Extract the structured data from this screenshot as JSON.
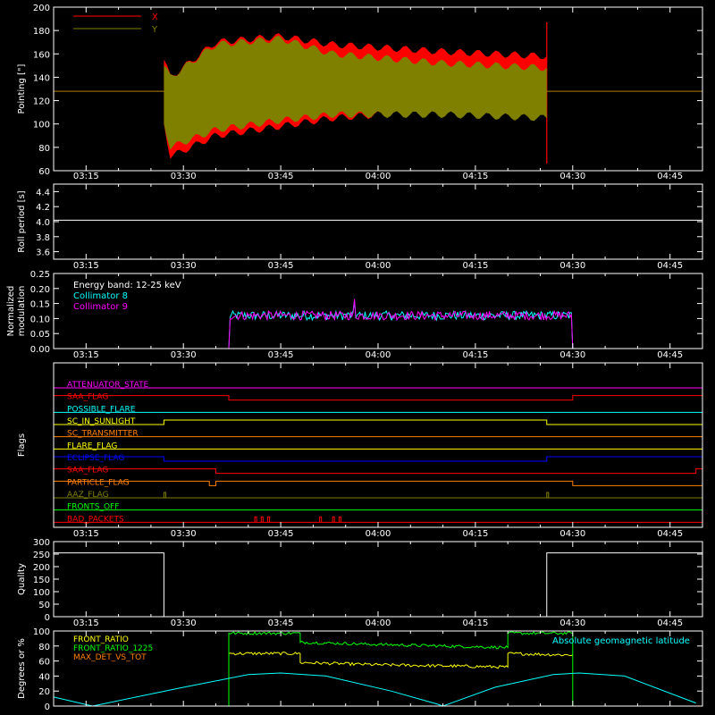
{
  "time_ticks": [
    "03:15",
    "03:30",
    "03:45",
    "04:00",
    "04:15",
    "04:30",
    "04:45"
  ],
  "colors": {
    "background": "#000000",
    "axes": "#ffffff",
    "red": "#ff0000",
    "olive": "#808000",
    "cyan": "#00ffff",
    "magenta": "#ff00ff",
    "orange": "#ff8000",
    "yellow": "#ffff00",
    "green": "#00ff00",
    "blue": "#0000ff",
    "white": "#ffffff"
  },
  "chart_data": [
    {
      "type": "line",
      "panel": "pointing",
      "ylabel": "Pointing [\"]",
      "ylim": [
        60,
        200
      ],
      "yticks": [
        "60",
        "80",
        "100",
        "120",
        "140",
        "160",
        "180",
        "200"
      ],
      "legend_position": "top-left",
      "series": [
        {
          "name": "X",
          "color": "#ff0000",
          "band_start": "03:27",
          "band_end": "04:26",
          "envelope_points": [
            {
              "t": "03:27",
              "upper": 155,
              "lower": 100
            },
            {
              "t": "03:28",
              "upper": 140,
              "lower": 72
            },
            {
              "t": "03:35",
              "upper": 170,
              "lower": 90
            },
            {
              "t": "03:45",
              "upper": 175,
              "lower": 98
            },
            {
              "t": "03:53",
              "upper": 168,
              "lower": 105
            },
            {
              "t": "04:10",
              "upper": 162,
              "lower": 112
            },
            {
              "t": "04:26",
              "upper": 158,
              "lower": 115
            }
          ],
          "baseline": 128,
          "spike": {
            "t": "04:26",
            "high": 187,
            "low": 66
          }
        },
        {
          "name": "Y",
          "color": "#808000",
          "band_start": "03:27",
          "band_end": "04:26",
          "envelope_points": [
            {
              "t": "03:27",
              "upper": 150,
              "lower": 100
            },
            {
              "t": "03:28",
              "upper": 140,
              "lower": 80
            },
            {
              "t": "03:35",
              "upper": 168,
              "lower": 95
            },
            {
              "t": "03:45",
              "upper": 173,
              "lower": 103
            },
            {
              "t": "03:53",
              "upper": 160,
              "lower": 108
            },
            {
              "t": "04:10",
              "upper": 152,
              "lower": 108
            },
            {
              "t": "04:26",
              "upper": 148,
              "lower": 105
            }
          ],
          "baseline": 128
        }
      ]
    },
    {
      "type": "line",
      "panel": "roll",
      "ylabel": "Roll period [s]",
      "ylim": [
        3.5,
        4.5
      ],
      "yticks": [
        "3.6",
        "3.8",
        "4.0",
        "4.2",
        "4.4"
      ],
      "series": [
        {
          "color": "#ffffff",
          "constant": 4.02,
          "from": "03:10",
          "to": "04:50"
        }
      ]
    },
    {
      "type": "line",
      "panel": "modulation",
      "ylabel_lines": [
        "Normalized",
        "modulation"
      ],
      "ylim": [
        0,
        0.25
      ],
      "yticks": [
        "0.00",
        "0.05",
        "0.10",
        "0.15",
        "0.20",
        "0.25"
      ],
      "annotation": "Energy band: 12-25 keV",
      "legend_position": "top-left",
      "active_window": [
        "03:37",
        "04:30"
      ],
      "series": [
        {
          "name": "Collimator 8",
          "color": "#00ffff",
          "mean": 0.11,
          "noise": 0.015
        },
        {
          "name": "Collimator 9",
          "color": "#ff00ff",
          "mean": 0.11,
          "noise": 0.015
        }
      ]
    },
    {
      "type": "line",
      "panel": "flags",
      "ylabel": "Flags",
      "flags": [
        {
          "name": "ATTENUATOR_STATE",
          "color": "#ff00ff",
          "segments": [
            [
              "03:10",
              "04:50",
              0
            ]
          ]
        },
        {
          "name": "SAA_FLAG",
          "color": "#ff0000",
          "segments": [
            [
              "03:10",
              "03:37",
              1
            ],
            [
              "03:37",
              "04:30",
              0
            ],
            [
              "04:30",
              "04:50",
              1
            ]
          ]
        },
        {
          "name": "POSSIBLE_FLARE",
          "color": "#00ffff",
          "segments": [
            [
              "03:10",
              "04:50",
              0
            ]
          ]
        },
        {
          "name": "SC_IN_SUNLIGHT",
          "color": "#ffff00",
          "segments": [
            [
              "03:10",
              "03:27",
              0
            ],
            [
              "03:27",
              "04:26",
              1
            ],
            [
              "04:26",
              "04:50",
              0
            ]
          ]
        },
        {
          "name": "SC_TRANSMITTER",
          "color": "#ff8000",
          "segments": [
            [
              "03:10",
              "04:50",
              0
            ]
          ]
        },
        {
          "name": "FLARE_FLAG",
          "color": "#ffff00",
          "segments": [
            [
              "03:10",
              "04:50",
              0
            ]
          ]
        },
        {
          "name": "ECLIPSE_FLAG",
          "color": "#0000ff",
          "segments": [
            [
              "03:10",
              "03:27",
              1
            ],
            [
              "03:27",
              "04:26",
              0
            ],
            [
              "04:26",
              "04:50",
              1
            ]
          ]
        },
        {
          "name": "SAA_FLAG",
          "color": "#ff0000",
          "segments": [
            [
              "03:10",
              "03:35",
              1
            ],
            [
              "03:35",
              "04:49",
              0
            ],
            [
              "04:49",
              "04:50",
              1
            ]
          ]
        },
        {
          "name": "PARTICLE_FLAG",
          "color": "#ff8000",
          "segments": [
            [
              "03:10",
              "03:34",
              1
            ],
            [
              "03:34",
              "03:35",
              0
            ],
            [
              "03:35",
              "03:36",
              1
            ],
            [
              "03:36",
              "04:30",
              1
            ],
            [
              "04:30",
              "04:50",
              0
            ]
          ]
        },
        {
          "name": "AAZ_FLAG",
          "color": "#808000",
          "segments": [
            [
              "03:10",
              "04:50",
              0
            ]
          ],
          "pulses": [
            "03:27",
            "04:26"
          ]
        },
        {
          "name": "FRONTS_OFF",
          "color": "#00ff00",
          "segments": [
            [
              "03:10",
              "04:50",
              0
            ]
          ]
        },
        {
          "name": "BAD_PACKETS",
          "color": "#ff0000",
          "segments": [
            [
              "03:10",
              "04:50",
              0
            ]
          ],
          "pulses": [
            "03:41",
            "03:42",
            "03:43",
            "03:51",
            "03:53",
            "03:54"
          ]
        }
      ]
    },
    {
      "type": "line",
      "panel": "quality",
      "ylabel": "Quality",
      "ylim": [
        0,
        300
      ],
      "yticks": [
        "0",
        "50",
        "100",
        "150",
        "200",
        "250",
        "300"
      ],
      "series": [
        {
          "color": "#ffffff",
          "points": [
            [
              "03:10",
              255
            ],
            [
              "03:27",
              255
            ],
            [
              "03:27",
              0
            ],
            [
              "04:26",
              0
            ],
            [
              "04:26",
              255
            ],
            [
              "04:50",
              255
            ]
          ]
        }
      ]
    },
    {
      "type": "line",
      "panel": "ratios",
      "ylabel": "Degrees or %",
      "ylim": [
        0,
        100
      ],
      "yticks": [
        "0",
        "20",
        "40",
        "60",
        "80",
        "100"
      ],
      "legend_position": "top-left",
      "series": [
        {
          "name": "FRONT_RATIO",
          "color": "#ffff00",
          "points": [
            [
              "03:37",
              70
            ],
            [
              "03:48",
              70
            ],
            [
              "03:48",
              58
            ],
            [
              "04:00",
              55
            ],
            [
              "04:20",
              52
            ],
            [
              "04:20",
              70
            ],
            [
              "04:30",
              68
            ]
          ],
          "noise": 2
        },
        {
          "name": "FRONT_RATIO_1225",
          "color": "#00ff00",
          "points": [
            [
              "03:37",
              0
            ],
            [
              "03:37",
              97
            ],
            [
              "03:48",
              97
            ],
            [
              "03:48",
              85
            ],
            [
              "04:00",
              82
            ],
            [
              "04:20",
              78
            ],
            [
              "04:20",
              97
            ],
            [
              "04:30",
              97
            ],
            [
              "04:30",
              0
            ]
          ],
          "noise": 2
        },
        {
          "name": "MAX_DET_VS_TOT",
          "color": "#ff8000",
          "points": [
            [
              "03:10",
              0
            ],
            [
              "04:50",
              0
            ]
          ]
        },
        {
          "name": "Absolute geomagnetic latitude",
          "color": "#00ffff",
          "points": [
            [
              "03:10",
              12
            ],
            [
              "03:16",
              0
            ],
            [
              "03:30",
              25
            ],
            [
              "03:40",
              42
            ],
            [
              "03:45",
              44
            ],
            [
              "03:52",
              40
            ],
            [
              "04:02",
              20
            ],
            [
              "04:09",
              3
            ],
            [
              "04:10",
              0
            ],
            [
              "04:18",
              25
            ],
            [
              "04:27",
              42
            ],
            [
              "04:31",
              44
            ],
            [
              "04:38",
              40
            ],
            [
              "04:49",
              4
            ]
          ]
        }
      ]
    }
  ]
}
